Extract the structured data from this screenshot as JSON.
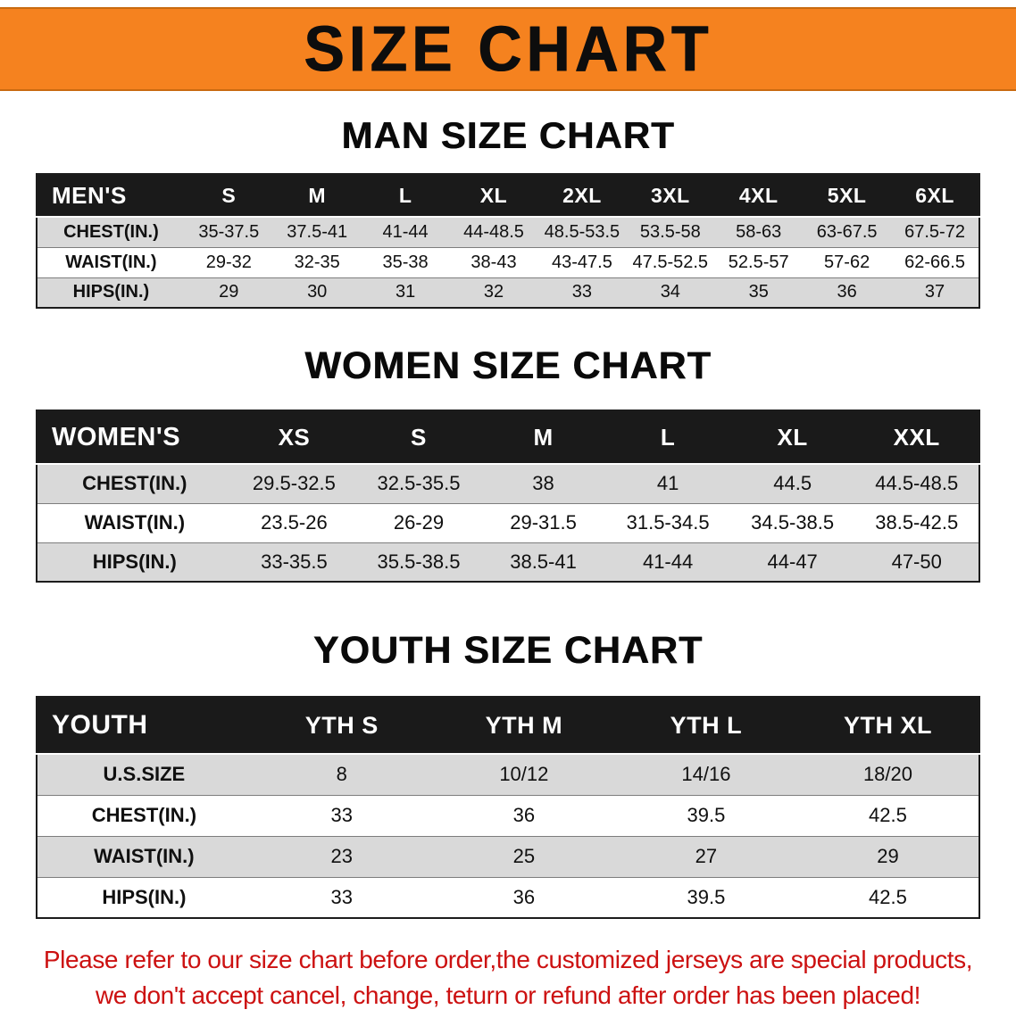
{
  "banner": {
    "title": "SIZE CHART"
  },
  "theme": {
    "banner_orange": "#f5821f",
    "table_header_black": "#1a1a1a",
    "row_stripe_gray": "#d9d9d9",
    "disclaimer_red": "#cc1111"
  },
  "chart_data": [
    {
      "type": "table",
      "title": "MAN SIZE CHART",
      "columns": [
        "MEN'S",
        "S",
        "M",
        "L",
        "XL",
        "2XL",
        "3XL",
        "4XL",
        "5XL",
        "6XL"
      ],
      "rows": [
        [
          "CHEST(IN.)",
          "35-37.5",
          "37.5-41",
          "41-44",
          "44-48.5",
          "48.5-53.5",
          "53.5-58",
          "58-63",
          "63-67.5",
          "67.5-72"
        ],
        [
          "WAIST(IN.)",
          "29-32",
          "32-35",
          "35-38",
          "38-43",
          "43-47.5",
          "47.5-52.5",
          "52.5-57",
          "57-62",
          "62-66.5"
        ],
        [
          "HIPS(IN.)",
          "29",
          "30",
          "31",
          "32",
          "33",
          "34",
          "35",
          "36",
          "37"
        ]
      ]
    },
    {
      "type": "table",
      "title": "WOMEN SIZE CHART",
      "columns": [
        "WOMEN'S",
        "XS",
        "S",
        "M",
        "L",
        "XL",
        "XXL"
      ],
      "rows": [
        [
          "CHEST(IN.)",
          "29.5-32.5",
          "32.5-35.5",
          "38",
          "41",
          "44.5",
          "44.5-48.5"
        ],
        [
          "WAIST(IN.)",
          "23.5-26",
          "26-29",
          "29-31.5",
          "31.5-34.5",
          "34.5-38.5",
          "38.5-42.5"
        ],
        [
          "HIPS(IN.)",
          "33-35.5",
          "35.5-38.5",
          "38.5-41",
          "41-44",
          "44-47",
          "47-50"
        ]
      ]
    },
    {
      "type": "table",
      "title": "YOUTH SIZE CHART",
      "columns": [
        "YOUTH",
        "YTH S",
        "YTH M",
        "YTH L",
        "YTH XL"
      ],
      "rows": [
        [
          "U.S.SIZE",
          "8",
          "10/12",
          "14/16",
          "18/20"
        ],
        [
          "CHEST(IN.)",
          "33",
          "36",
          "39.5",
          "42.5"
        ],
        [
          "WAIST(IN.)",
          "23",
          "25",
          "27",
          "29"
        ],
        [
          "HIPS(IN.)",
          "33",
          "36",
          "39.5",
          "42.5"
        ]
      ]
    }
  ],
  "footer": {
    "lines": [
      "Please refer to our size chart before order,the customized jerseys are special products,",
      "we don't accept cancel, change, teturn or refund after order has been placed!"
    ]
  }
}
